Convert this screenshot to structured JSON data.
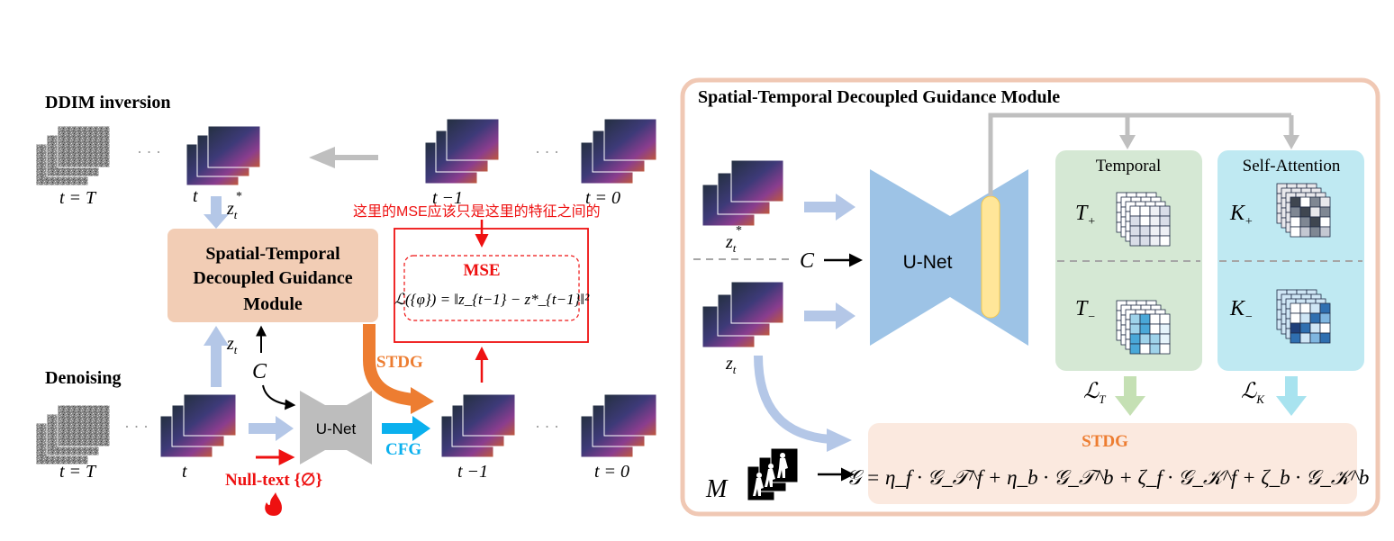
{
  "left": {
    "inversion_label": "DDIM inversion",
    "denoising_label": "Denoising",
    "dots": "· · ·",
    "t_T": "t = T",
    "t": "t",
    "t_minus_1": "t −1",
    "t_0": "t = 0",
    "z_t_star": "z",
    "z_t": "z",
    "sub_t": "t",
    "star": "*",
    "c_symbol": "C",
    "module_lines": [
      "Spatial-Temporal",
      "Decoupled Guidance",
      "Module"
    ],
    "unet": "U-Net",
    "cfg": "CFG",
    "stdg": "STDG",
    "null_text": "Null-text {∅}",
    "mse": "MSE",
    "mse_formula": "ℒ({φ}) = ‖z_{t−1} − z*_{t−1}‖²",
    "annotation": "这里的MSE应该只是这里的特征之间的"
  },
  "right": {
    "title": "Spatial-Temporal Decoupled Guidance Module",
    "z_t_star": "z",
    "z_t": "z",
    "sub_t": "t",
    "star": "*",
    "c_symbol": "C",
    "unet": "U-Net",
    "temporal": "Temporal",
    "self_attention": "Self-Attention",
    "t_plus": "T",
    "t_minus": "T",
    "k_plus": "K",
    "k_minus": "K",
    "plus": "+",
    "minus": "−",
    "loss_t": "ℒ",
    "loss_k": "ℒ",
    "loss_t_sub": "T",
    "loss_k_sub": "K",
    "m_symbol": "M",
    "stdg": "STDG",
    "formula": "𝒢 = η_f · 𝒢_𝒯^f + η_b · 𝒢_𝒯^b + ζ_f · 𝒢_𝒦^f + ζ_b · 𝒢_𝒦^b"
  },
  "colors": {
    "module_fill": "#f2cdb5",
    "unet_left": "#bdbdbd",
    "unet_right": "#9dc3e6",
    "temporal_fill": "#d5e8d4",
    "attention_fill": "#bfe9f2",
    "stdg_fill": "#fbe9df",
    "border": "#f0c8b4",
    "red": "#ee1111",
    "orange": "#ed7d31",
    "cyan": "#0ab0ee",
    "light_arrow": "#b4c7e7",
    "gray_arrow": "#bfbfbf"
  }
}
